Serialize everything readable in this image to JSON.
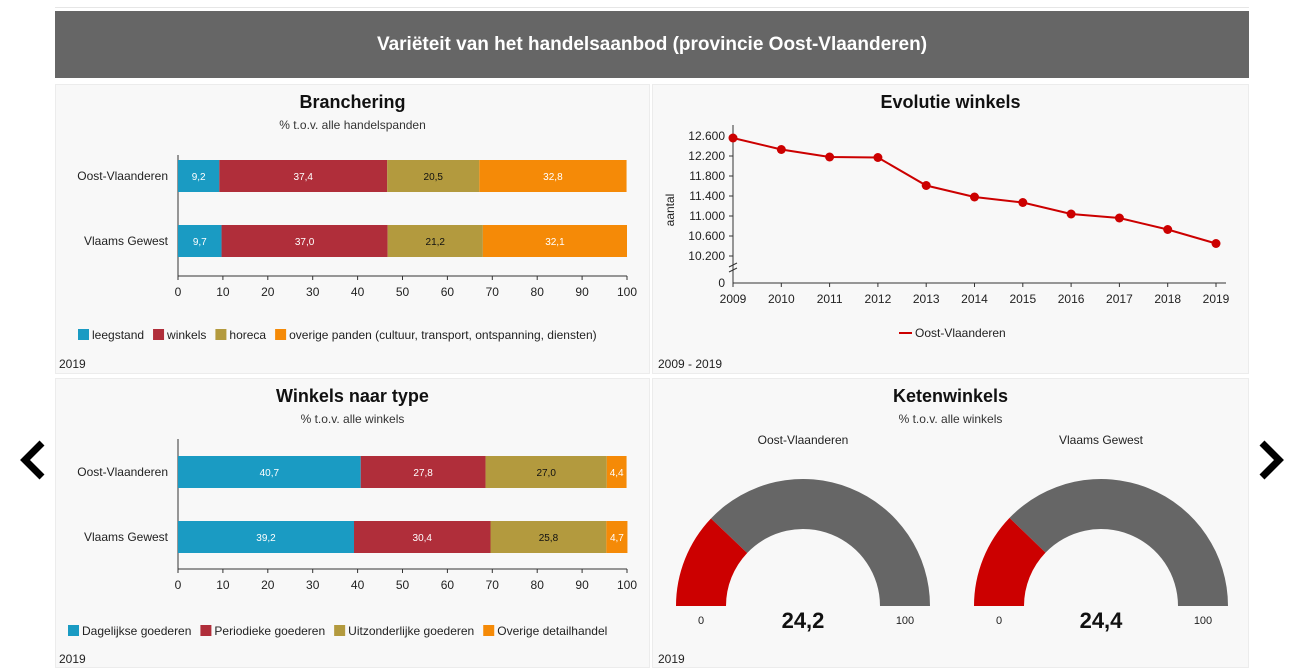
{
  "header": {
    "title": "Variëteit van het handelsaanbod (provincie Oost-Vlaanderen)"
  },
  "nav": {
    "prev_icon": "chevron-left-icon",
    "next_icon": "chevron-right-icon"
  },
  "colors": {
    "blue": "#1a9bc3",
    "red": "#b02e3a",
    "olive": "#b39a3e",
    "orange": "#f58a07",
    "line": "#cc0000",
    "gauge_fill": "#cc0000",
    "gauge_bg": "#666666"
  },
  "panels": {
    "branchering": {
      "title": "Branchering",
      "subtitle": "% t.o.v. alle handelspanden",
      "footer": "2019"
    },
    "evolutie": {
      "title": "Evolutie winkels",
      "footer": "2009 - 2019"
    },
    "winkels_type": {
      "title": "Winkels naar type",
      "subtitle": "% t.o.v. alle winkels",
      "footer": "2019"
    },
    "ketenwinkels": {
      "title": "Ketenwinkels",
      "subtitle": "% t.o.v. alle winkels",
      "footer": "2019"
    }
  },
  "chart_data": [
    {
      "id": "branchering",
      "type": "bar",
      "orientation": "horizontal-stacked",
      "title": "Branchering",
      "subtitle": "% t.o.v. alle handelspanden",
      "categories": [
        "Oost-Vlaanderen",
        "Vlaams Gewest"
      ],
      "series": [
        {
          "name": "leegstand",
          "color": "#1a9bc3",
          "values": [
            9.2,
            9.7
          ],
          "labels": [
            "9,2",
            "9,7"
          ]
        },
        {
          "name": "winkels",
          "color": "#b02e3a",
          "values": [
            37.4,
            37.0
          ],
          "labels": [
            "37,4",
            "37,0"
          ]
        },
        {
          "name": "horeca",
          "color": "#b39a3e",
          "values": [
            20.5,
            21.2
          ],
          "labels": [
            "20,5",
            "21,2"
          ]
        },
        {
          "name": "overige panden (cultuur, transport, ontspanning, diensten)",
          "color": "#f58a07",
          "values": [
            32.8,
            32.1
          ],
          "labels": [
            "32,8",
            "32,1"
          ]
        }
      ],
      "xlim": [
        0,
        100
      ],
      "xticks": [
        "0",
        "10",
        "20",
        "30",
        "40",
        "50",
        "60",
        "70",
        "80",
        "90",
        "100"
      ]
    },
    {
      "id": "evolutie",
      "type": "line",
      "title": "Evolutie winkels",
      "ylabel": "aantal",
      "x": [
        "2009",
        "2010",
        "2011",
        "2012",
        "2013",
        "2014",
        "2015",
        "2016",
        "2017",
        "2018",
        "2019"
      ],
      "series": [
        {
          "name": "Oost-Vlaanderen",
          "color": "#cc0000",
          "values": [
            12560,
            12330,
            12180,
            12170,
            11610,
            11380,
            11270,
            11040,
            10960,
            10730,
            10450
          ]
        }
      ],
      "ylim": [
        10200,
        12700
      ],
      "yticks": [
        "12.600",
        "12.200",
        "11.800",
        "11.400",
        "11.000",
        "10.600",
        "10.200"
      ],
      "ytick_values": [
        12600,
        12200,
        11800,
        11400,
        11000,
        10600,
        10200
      ],
      "y_zero_label": "0",
      "axis_break": true
    },
    {
      "id": "winkels_type",
      "type": "bar",
      "orientation": "horizontal-stacked",
      "title": "Winkels naar type",
      "subtitle": "% t.o.v. alle winkels",
      "categories": [
        "Oost-Vlaanderen",
        "Vlaams Gewest"
      ],
      "series": [
        {
          "name": "Dagelijkse goederen",
          "color": "#1a9bc3",
          "values": [
            40.7,
            39.2
          ],
          "labels": [
            "40,7",
            "39,2"
          ]
        },
        {
          "name": "Periodieke goederen",
          "color": "#b02e3a",
          "values": [
            27.8,
            30.4
          ],
          "labels": [
            "27,8",
            "30,4"
          ]
        },
        {
          "name": "Uitzonderlijke goederen",
          "color": "#b39a3e",
          "values": [
            27.0,
            25.8
          ],
          "labels": [
            "27,0",
            "25,8"
          ]
        },
        {
          "name": "Overige detailhandel",
          "color": "#f58a07",
          "values": [
            4.4,
            4.7
          ],
          "labels": [
            "4,4",
            "4,7"
          ]
        }
      ],
      "xlim": [
        0,
        100
      ],
      "xticks": [
        "0",
        "10",
        "20",
        "30",
        "40",
        "50",
        "60",
        "70",
        "80",
        "90",
        "100"
      ]
    },
    {
      "id": "ketenwinkels",
      "type": "gauge",
      "title": "Ketenwinkels",
      "subtitle": "% t.o.v. alle winkels",
      "gauges": [
        {
          "name": "Oost-Vlaanderen",
          "value": 24.2,
          "label": "24,2",
          "min": 0,
          "max": 100,
          "min_label": "0",
          "max_label": "100"
        },
        {
          "name": "Vlaams Gewest",
          "value": 24.4,
          "label": "24,4",
          "min": 0,
          "max": 100,
          "min_label": "0",
          "max_label": "100"
        }
      ]
    }
  ]
}
